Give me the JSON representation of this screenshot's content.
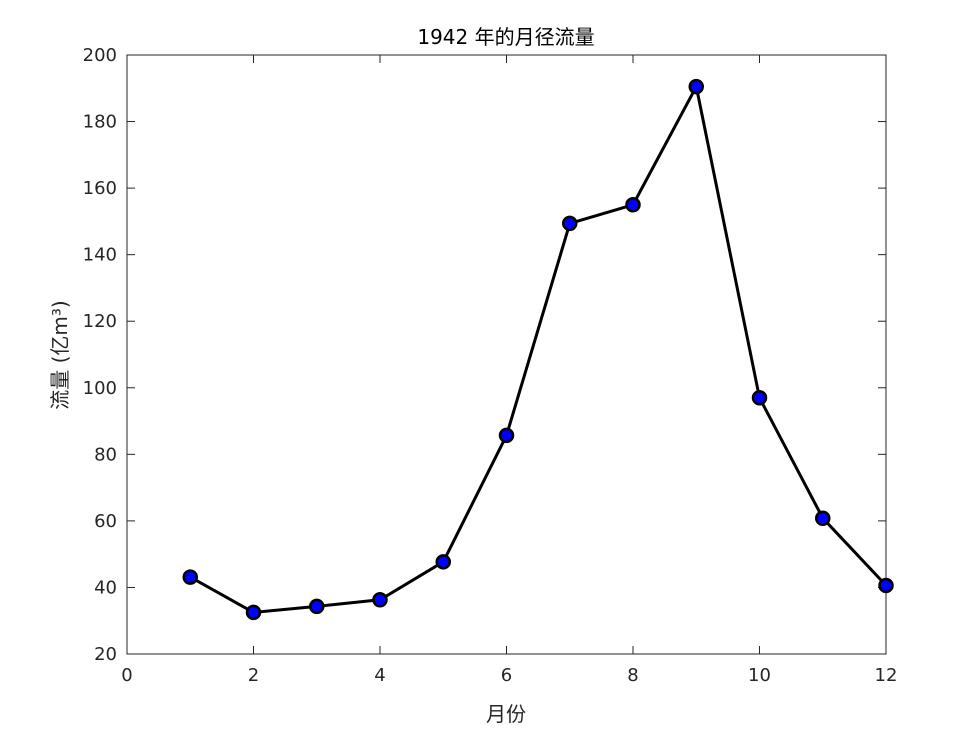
{
  "chart_data": {
    "type": "line",
    "title": "1942 年的月径流量",
    "xlabel": "月份",
    "ylabel": "流量 (亿m³)",
    "xlim": [
      0,
      12
    ],
    "ylim": [
      20,
      200
    ],
    "xticks": [
      0,
      2,
      4,
      6,
      8,
      10,
      12
    ],
    "yticks": [
      20,
      40,
      60,
      80,
      100,
      120,
      140,
      160,
      180,
      200
    ],
    "grid": false,
    "box": true,
    "series": [
      {
        "x": [
          1,
          2,
          3,
          4,
          5,
          6,
          7,
          8,
          9,
          10,
          11,
          12
        ],
        "values": [
          43.1,
          32.5,
          34.3,
          36.3,
          47.7,
          85.7,
          149.4,
          155.0,
          190.5,
          97.0,
          60.8,
          40.6
        ],
        "line_color": "#000000",
        "marker": "circle",
        "marker_face_color": "#0000ff",
        "marker_edge_color": "#000000"
      }
    ]
  }
}
